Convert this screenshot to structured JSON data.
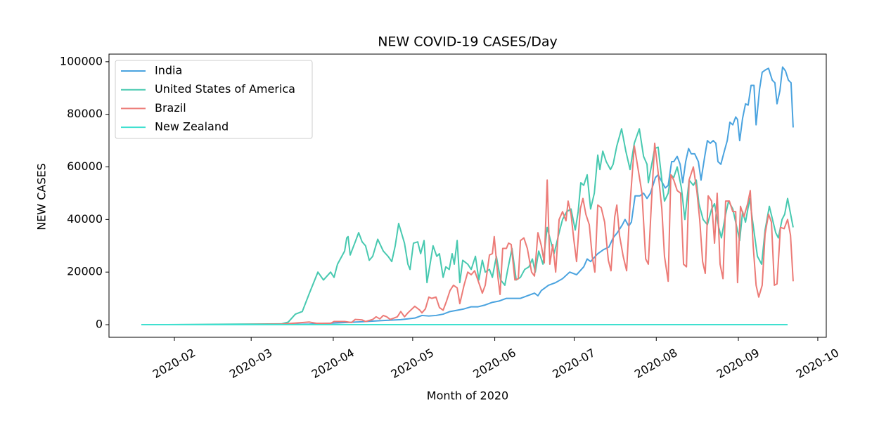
{
  "chart_data": {
    "type": "line",
    "title": "NEW COVID-19 CASES/Day",
    "x_label": "Month of 2020",
    "y_label": "NEW CASES",
    "xlim": [
      6.3,
      277.2
    ],
    "ylim": [
      -4800,
      102900
    ],
    "xticks": [
      {
        "value": 31,
        "label": "2020-02"
      },
      {
        "value": 60,
        "label": "2020-03"
      },
      {
        "value": 91,
        "label": "2020-04"
      },
      {
        "value": 121,
        "label": "2020-05"
      },
      {
        "value": 152,
        "label": "2020-06"
      },
      {
        "value": 182,
        "label": "2020-07"
      },
      {
        "value": 213,
        "label": "2020-08"
      },
      {
        "value": 244,
        "label": "2020-09"
      },
      {
        "value": 274,
        "label": "2020-10"
      }
    ],
    "yticks": [
      0,
      20000,
      40000,
      60000,
      80000,
      100000
    ],
    "legend": "upper left",
    "grid": false,
    "series": [
      {
        "name": "India",
        "color": "#4aa3df",
        "x": [
          28.3,
          71.4,
          82.0,
          97.9,
          108.6,
          116.5,
          121.8,
          124.5,
          127.1,
          129.8,
          132.5,
          135.1,
          137.8,
          140.4,
          143.1,
          145.7,
          148.4,
          151.1,
          153.7,
          156.4,
          161.7,
          164.3,
          167.0,
          168.3,
          169.6,
          172.3,
          175.0,
          177.6,
          180.3,
          182.9,
          185.6,
          186.9,
          188.2,
          190.9,
          193.0,
          195.1,
          196.7,
          198.3,
          200.2,
          201.2,
          202.6,
          203.6,
          205.0,
          206.8,
          208.2,
          209.5,
          210.8,
          212.7,
          213.7,
          215.3,
          216.4,
          217.5,
          218.8,
          219.6,
          220.9,
          222.0,
          223.0,
          224.1,
          225.2,
          226.2,
          227.5,
          228.9,
          229.9,
          231.3,
          232.3,
          233.4,
          234.5,
          235.5,
          236.3,
          237.4,
          238.7,
          239.8,
          240.8,
          241.9,
          243.0,
          243.7,
          244.5,
          245.6,
          246.7,
          247.7,
          248.8,
          249.9,
          250.7,
          252.0,
          253.0,
          254.4,
          255.4,
          256.8,
          257.8,
          258.6,
          259.7,
          260.7,
          261.8,
          262.9,
          263.9,
          264.7
        ],
        "values": [
          0,
          0,
          200,
          900,
          1500,
          1900,
          2500,
          3500,
          3300,
          3500,
          4000,
          5000,
          5500,
          6000,
          6800,
          6800,
          7500,
          8500,
          9000,
          10000,
          10000,
          11000,
          12000,
          11000,
          13000,
          15000,
          16000,
          17500,
          20000,
          19000,
          22000,
          25000,
          24000,
          27000,
          28500,
          29500,
          33000,
          35000,
          38000,
          40000,
          37500,
          39000,
          49000,
          49000,
          50000,
          48000,
          50000,
          56000,
          57000,
          54000,
          52000,
          53000,
          62000,
          62000,
          64000,
          61000,
          54000,
          62000,
          67000,
          65000,
          65000,
          62000,
          55000,
          64000,
          70000,
          69000,
          70000,
          69000,
          62000,
          61000,
          66000,
          70000,
          77000,
          76000,
          79000,
          78000,
          70000,
          78500,
          84000,
          83500,
          91000,
          91000,
          76000,
          89500,
          96000,
          97000,
          97500,
          93000,
          92000,
          84000,
          89000,
          98000,
          96500,
          93000,
          92000,
          75000
        ]
      },
      {
        "name": "United States of America",
        "color": "#48c9b0",
        "x": [
          28.3,
          71.4,
          74.0,
          76.7,
          79.3,
          82.0,
          85.2,
          87.3,
          90.0,
          91.3,
          92.6,
          95.3,
          96.1,
          96.6,
          97.4,
          99.3,
          100.6,
          101.9,
          103.2,
          104.6,
          105.9,
          107.8,
          109.9,
          111.7,
          113.1,
          114.4,
          115.7,
          117.9,
          119.2,
          120.0,
          121.3,
          122.9,
          124.0,
          125.3,
          126.4,
          127.4,
          128.7,
          130.1,
          131.1,
          132.5,
          133.5,
          134.8,
          135.9,
          136.7,
          137.8,
          138.8,
          139.9,
          141.8,
          143.1,
          144.7,
          146.0,
          147.3,
          148.4,
          150.0,
          151.1,
          152.6,
          154.2,
          155.8,
          156.9,
          158.5,
          160.1,
          161.7,
          163.3,
          164.9,
          166.2,
          167.3,
          168.6,
          170.2,
          171.8,
          172.8,
          174.4,
          176.3,
          177.6,
          179.2,
          180.8,
          182.4,
          183.5,
          184.5,
          185.6,
          186.9,
          188.2,
          189.6,
          190.9,
          191.7,
          192.8,
          194.1,
          195.7,
          196.7,
          198.1,
          199.9,
          201.5,
          203.1,
          204.7,
          206.6,
          208.2,
          209.5,
          210.0,
          211.1,
          212.4,
          213.7,
          215.1,
          216.1,
          217.5,
          218.5,
          219.6,
          220.9,
          222.5,
          223.8,
          225.4,
          227.0,
          228.1,
          229.1,
          230.7,
          232.3,
          233.9,
          235.0,
          236.6,
          237.6,
          239.2,
          240.3,
          241.9,
          244.5,
          245.6,
          246.7,
          248.3,
          249.3,
          251.2,
          252.8,
          254.1,
          255.7,
          258.1,
          259.1,
          260.5,
          261.5,
          262.6,
          264.7
        ],
        "values": [
          0,
          300,
          1000,
          4000,
          5000,
          12000,
          20000,
          17000,
          20000,
          18000,
          23000,
          28000,
          33000,
          33500,
          26500,
          31500,
          35000,
          31500,
          30000,
          24500,
          26000,
          32500,
          28000,
          26000,
          24000,
          30000,
          38500,
          31000,
          23000,
          21000,
          31000,
          31500,
          27000,
          32000,
          16000,
          22000,
          30000,
          26000,
          27000,
          18000,
          22000,
          21000,
          27000,
          23000,
          32000,
          16000,
          24500,
          23000,
          21000,
          26000,
          17000,
          24500,
          20000,
          21000,
          18000,
          26000,
          17000,
          15000,
          21000,
          29000,
          17000,
          18000,
          21000,
          22000,
          25000,
          20000,
          28000,
          23000,
          37000,
          33000,
          27000,
          35000,
          40000,
          43000,
          44000,
          36000,
          43000,
          54000,
          53000,
          57000,
          44000,
          50000,
          64500,
          59000,
          66000,
          62000,
          59000,
          61000,
          68000,
          74500,
          66000,
          59000,
          69000,
          74500,
          64000,
          61000,
          54000,
          60000,
          67000,
          67500,
          55000,
          47000,
          50000,
          57000,
          56000,
          60000,
          52000,
          40000,
          55000,
          53000,
          55000,
          46000,
          40000,
          38000,
          44000,
          46000,
          37000,
          33000,
          42000,
          47000,
          44000,
          32000,
          43000,
          39000,
          48000,
          40000,
          26000,
          23000,
          36000,
          45000,
          35000,
          33000,
          40000,
          42000,
          48000,
          37000
        ]
      },
      {
        "name": "Brazil",
        "color": "#ec7b77",
        "x": [
          55.4,
          71.4,
          82.0,
          84.7,
          90.0,
          91.3,
          95.3,
          97.9,
          99.3,
          101.9,
          103.2,
          105.9,
          107.2,
          108.6,
          109.9,
          111.2,
          112.5,
          113.9,
          115.2,
          116.5,
          117.9,
          119.2,
          121.8,
          123.7,
          124.5,
          125.8,
          127.1,
          128.2,
          129.8,
          131.1,
          132.5,
          133.8,
          135.1,
          136.4,
          137.8,
          138.8,
          140.4,
          141.8,
          143.1,
          144.4,
          146.3,
          147.3,
          148.4,
          150.0,
          151.1,
          151.8,
          153.2,
          154.0,
          155.0,
          156.4,
          157.2,
          158.2,
          159.6,
          160.9,
          161.7,
          163.0,
          164.3,
          165.9,
          167.0,
          168.3,
          169.6,
          170.7,
          171.8,
          172.8,
          173.9,
          175.0,
          176.3,
          177.6,
          178.9,
          179.7,
          180.8,
          181.9,
          182.9,
          184.3,
          185.3,
          186.4,
          187.7,
          188.8,
          189.8,
          190.9,
          192.2,
          193.5,
          194.9,
          195.9,
          197.3,
          198.1,
          199.1,
          200.5,
          201.8,
          203.1,
          204.7,
          206.0,
          207.6,
          209.0,
          210.0,
          211.1,
          212.4,
          213.7,
          215.1,
          216.1,
          217.5,
          218.5,
          219.6,
          220.9,
          222.2,
          223.3,
          224.4,
          225.4,
          227.0,
          228.3,
          229.4,
          230.5,
          231.5,
          232.6,
          233.9,
          235.0,
          236.0,
          237.1,
          238.2,
          239.2,
          240.6,
          241.9,
          243.0,
          243.7,
          244.8,
          246.1,
          247.5,
          248.5,
          249.6,
          250.7,
          251.7,
          253.0,
          254.1,
          255.4,
          256.5,
          257.6,
          258.6,
          259.9,
          261.3,
          262.6,
          263.7,
          264.7
        ],
        "values": [
          0,
          200,
          1000,
          500,
          500,
          1200,
          1200,
          800,
          2000,
          1800,
          1200,
          2000,
          3000,
          2200,
          3500,
          3000,
          2000,
          2500,
          3000,
          5000,
          3000,
          4500,
          7000,
          5500,
          4500,
          6000,
          10500,
          10000,
          10500,
          6500,
          5500,
          9000,
          13000,
          15000,
          14000,
          8000,
          15000,
          20000,
          19000,
          20500,
          15000,
          12000,
          15000,
          26500,
          27000,
          33500,
          18000,
          11500,
          29000,
          29000,
          31000,
          30500,
          17000,
          17500,
          32000,
          33000,
          29000,
          20000,
          18500,
          35000,
          30000,
          23500,
          55000,
          23000,
          30500,
          20000,
          40000,
          43000,
          39500,
          47000,
          42000,
          32000,
          24000,
          44000,
          48000,
          42000,
          38000,
          26000,
          20000,
          45500,
          44500,
          39000,
          24500,
          20500,
          41000,
          45500,
          34000,
          26000,
          20500,
          46000,
          68000,
          60000,
          50000,
          25000,
          23000,
          45000,
          69000,
          58000,
          44000,
          26000,
          16500,
          57000,
          55000,
          51000,
          50000,
          23000,
          22000,
          55000,
          60000,
          51000,
          40000,
          24000,
          19500,
          49000,
          47000,
          31000,
          50000,
          23000,
          17500,
          47000,
          47000,
          43000,
          43000,
          16000,
          45000,
          41000,
          46000,
          51000,
          30000,
          15000,
          10500,
          15000,
          34500,
          42000,
          39000,
          15000,
          15500,
          37000,
          36500,
          40000,
          34000,
          16500
        ]
      },
      {
        "name": "New Zealand",
        "color": "#40e0d0",
        "x": [
          18.5,
          262.6
        ],
        "values": [
          0,
          0
        ]
      }
    ]
  }
}
